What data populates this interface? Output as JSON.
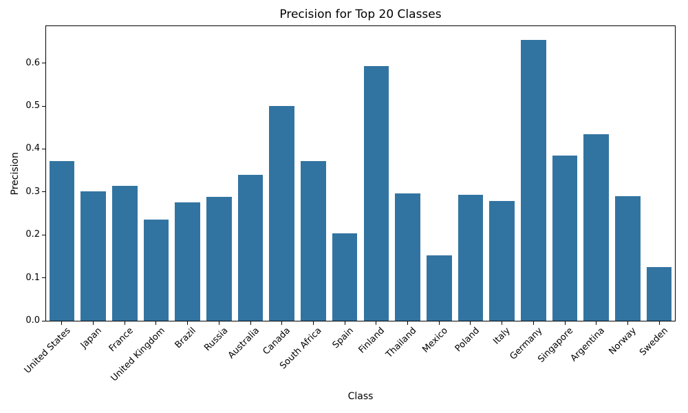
{
  "chart_data": {
    "type": "bar",
    "title": "Precision for Top 20 Classes",
    "xlabel": "Class",
    "ylabel": "Precision",
    "categories": [
      "United States",
      "Japan",
      "France",
      "United Kingdom",
      "Brazil",
      "Russia",
      "Australia",
      "Canada",
      "South Africa",
      "Spain",
      "Finland",
      "Thailand",
      "Mexico",
      "Poland",
      "Italy",
      "Germany",
      "Singapore",
      "Argentina",
      "Norway",
      "Sweden"
    ],
    "values": [
      0.372,
      0.301,
      0.314,
      0.235,
      0.276,
      0.288,
      0.339,
      0.5,
      0.372,
      0.204,
      0.593,
      0.297,
      0.152,
      0.293,
      0.279,
      0.654,
      0.385,
      0.435,
      0.29,
      0.125
    ],
    "ylim": [
      0,
      0.6875
    ],
    "yticks": [
      0.0,
      0.1,
      0.2,
      0.3,
      0.4,
      0.5,
      0.6
    ],
    "ytick_labels": [
      "0.0",
      "0.1",
      "0.2",
      "0.3",
      "0.4",
      "0.5",
      "0.6"
    ],
    "x_tick_rotation_deg": 45,
    "bar_color": "#3274A1",
    "axis_color": "#000000",
    "background_color": "#ffffff",
    "grid": false,
    "legend": "none"
  }
}
